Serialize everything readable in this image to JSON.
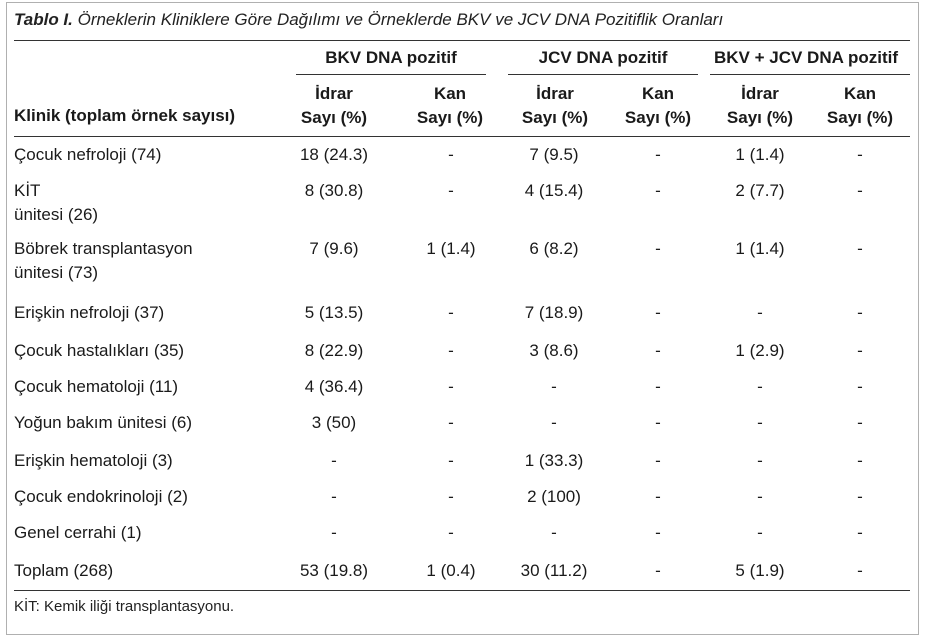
{
  "caption": {
    "label": "Tablo I.",
    "text": " Örneklerin Kliniklere Göre Dağılımı ve Örneklerde BKV ve JCV DNA Pozitiflik Oranları"
  },
  "header": {
    "clinic": "Klinik (toplam örnek sayısı)",
    "groups": [
      "BKV DNA pozitif",
      "JCV DNA pozitif",
      "BKV + JCV DNA pozitif"
    ],
    "sub": [
      {
        "l1": "İdrar",
        "l2": "Sayı (%)"
      },
      {
        "l1": "Kan",
        "l2": "Sayı (%)"
      },
      {
        "l1": "İdrar",
        "l2": "Sayı (%)"
      },
      {
        "l1": "Kan",
        "l2": "Sayı (%)"
      },
      {
        "l1": "İdrar",
        "l2": "Sayı (%)"
      },
      {
        "l1": "Kan",
        "l2": "Sayı (%)"
      }
    ]
  },
  "rows": [
    {
      "name": "Çocuk nefroloji (74)",
      "cells": [
        "18 (24.3)",
        "-",
        "7 (9.5)",
        "-",
        "1 (1.4)",
        "-"
      ]
    },
    {
      "name": "KİT\nünitesi (26)",
      "cells": [
        "8 (30.8)",
        "-",
        "4 (15.4)",
        "-",
        "2 (7.7)",
        "-"
      ]
    },
    {
      "name": "Böbrek transplantasyon\nünitesi (73)",
      "cells": [
        "7 (9.6)",
        "1 (1.4)",
        "6 (8.2)",
        "-",
        "1 (1.4)",
        "-"
      ]
    },
    {
      "name": "Erişkin nefroloji (37)",
      "cells": [
        "5 (13.5)",
        "-",
        "7 (18.9)",
        "-",
        "-",
        "-"
      ]
    },
    {
      "name": "Çocuk hastalıkları (35)",
      "cells": [
        "8 (22.9)",
        "-",
        "3 (8.6)",
        "-",
        "1 (2.9)",
        "-"
      ]
    },
    {
      "name": "Çocuk hematoloji (11)",
      "cells": [
        "4 (36.4)",
        "-",
        "-",
        "-",
        "-",
        "-"
      ]
    },
    {
      "name": "Yoğun bakım ünitesi (6)",
      "cells": [
        "3 (50)",
        "-",
        "-",
        "-",
        "-",
        "-"
      ]
    },
    {
      "name": "Erişkin hematoloji (3)",
      "cells": [
        "-",
        "-",
        "1 (33.3)",
        "-",
        "-",
        "-"
      ]
    },
    {
      "name": "Çocuk endokrinoloji (2)",
      "cells": [
        "-",
        "-",
        "2 (100)",
        "-",
        "-",
        "-"
      ]
    },
    {
      "name": "Genel cerrahi (1)",
      "cells": [
        "-",
        "-",
        "-",
        "-",
        "-",
        "-"
      ]
    },
    {
      "name": "Toplam (268)",
      "cells": [
        "53 (19.8)",
        "1 (0.4)",
        "30 (11.2)",
        "-",
        "5 (1.9)",
        "-"
      ]
    }
  ],
  "footnote": "KİT: Kemik iliği transplantasyonu."
}
